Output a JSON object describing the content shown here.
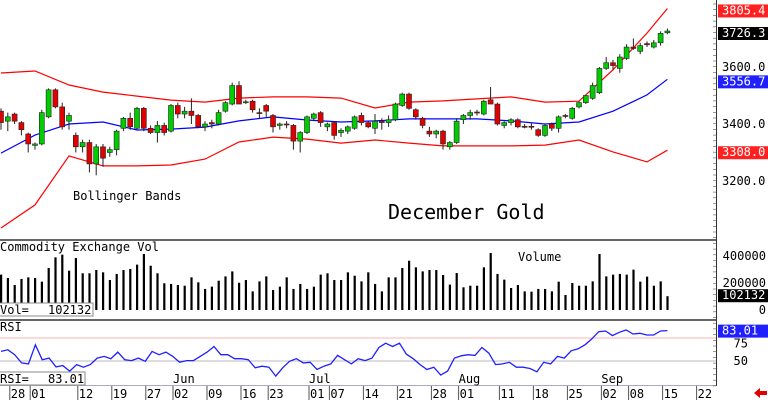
{
  "chart_data": [
    {
      "type": "candlestick",
      "title": "December Gold",
      "annotation": "Bollinger Bands",
      "ylim": [
        3000,
        3840
      ],
      "y_ticks": [
        "3600.0",
        "3400.0",
        "3200.0"
      ],
      "y_tick_values": [
        3600,
        3400,
        3200
      ],
      "grid": false,
      "colors": {
        "up": "#00cc00",
        "down": "#e00000",
        "bands": "#ff0000",
        "middle": "#0000ff"
      },
      "ohlc": [
        [
          3445,
          3455,
          3380,
          3405
        ],
        [
          3410,
          3440,
          3375,
          3425
        ],
        [
          3435,
          3440,
          3400,
          3410
        ],
        [
          3405,
          3410,
          3360,
          3380
        ],
        [
          3365,
          3370,
          3300,
          3330
        ],
        [
          3325,
          3335,
          3310,
          3330
        ],
        [
          3330,
          3450,
          3325,
          3440
        ],
        [
          3425,
          3525,
          3420,
          3520
        ],
        [
          3520,
          3525,
          3455,
          3460
        ],
        [
          3460,
          3475,
          3380,
          3390
        ],
        [
          3410,
          3440,
          3380,
          3430
        ],
        [
          3360,
          3370,
          3300,
          3320
        ],
        [
          3320,
          3345,
          3300,
          3335
        ],
        [
          3335,
          3345,
          3230,
          3260
        ],
        [
          3260,
          3330,
          3220,
          3320
        ],
        [
          3320,
          3330,
          3250,
          3280
        ],
        [
          3300,
          3320,
          3285,
          3310
        ],
        [
          3310,
          3380,
          3290,
          3375
        ],
        [
          3385,
          3425,
          3375,
          3420
        ],
        [
          3420,
          3440,
          3380,
          3390
        ],
        [
          3385,
          3460,
          3380,
          3455
        ],
        [
          3455,
          3460,
          3375,
          3385
        ],
        [
          3385,
          3395,
          3365,
          3370
        ],
        [
          3370,
          3410,
          3335,
          3395
        ],
        [
          3395,
          3405,
          3360,
          3370
        ],
        [
          3375,
          3470,
          3370,
          3465
        ],
        [
          3465,
          3475,
          3420,
          3435
        ],
        [
          3435,
          3460,
          3420,
          3445
        ],
        [
          3445,
          3490,
          3400,
          3430
        ],
        [
          3430,
          3435,
          3385,
          3390
        ],
        [
          3390,
          3410,
          3375,
          3400
        ],
        [
          3405,
          3415,
          3385,
          3400
        ],
        [
          3400,
          3450,
          3395,
          3440
        ],
        [
          3445,
          3480,
          3440,
          3475
        ],
        [
          3470,
          3545,
          3465,
          3535
        ],
        [
          3535,
          3550,
          3470,
          3470
        ],
        [
          3475,
          3485,
          3470,
          3478
        ],
        [
          3480,
          3485,
          3440,
          3450
        ],
        [
          3440,
          3455,
          3420,
          3438
        ],
        [
          3465,
          3470,
          3425,
          3445
        ],
        [
          3430,
          3435,
          3370,
          3390
        ],
        [
          3395,
          3405,
          3380,
          3400
        ],
        [
          3400,
          3410,
          3385,
          3398
        ],
        [
          3395,
          3400,
          3310,
          3340
        ],
        [
          3340,
          3375,
          3300,
          3370
        ],
        [
          3370,
          3430,
          3365,
          3425
        ],
        [
          3420,
          3440,
          3410,
          3435
        ],
        [
          3440,
          3445,
          3390,
          3405
        ],
        [
          3390,
          3405,
          3375,
          3400
        ],
        [
          3405,
          3410,
          3345,
          3360
        ],
        [
          3370,
          3385,
          3355,
          3378
        ],
        [
          3375,
          3395,
          3365,
          3390
        ],
        [
          3385,
          3430,
          3380,
          3425
        ],
        [
          3430,
          3440,
          3395,
          3405
        ],
        [
          3405,
          3410,
          3385,
          3390
        ],
        [
          3385,
          3435,
          3365,
          3410
        ],
        [
          3410,
          3420,
          3380,
          3405
        ],
        [
          3405,
          3430,
          3390,
          3415
        ],
        [
          3415,
          3475,
          3410,
          3470
        ],
        [
          3465,
          3510,
          3460,
          3505
        ],
        [
          3505,
          3510,
          3450,
          3455
        ],
        [
          3450,
          3455,
          3415,
          3425
        ],
        [
          3420,
          3425,
          3385,
          3395
        ],
        [
          3375,
          3390,
          3355,
          3365
        ],
        [
          3365,
          3380,
          3350,
          3375
        ],
        [
          3375,
          3380,
          3310,
          3330
        ],
        [
          3320,
          3340,
          3310,
          3335
        ],
        [
          3335,
          3420,
          3330,
          3410
        ],
        [
          3415,
          3435,
          3400,
          3430
        ],
        [
          3430,
          3450,
          3415,
          3440
        ],
        [
          3442,
          3450,
          3430,
          3440
        ],
        [
          3435,
          3485,
          3430,
          3480
        ],
        [
          3485,
          3530,
          3470,
          3470
        ],
        [
          3470,
          3475,
          3395,
          3400
        ],
        [
          3395,
          3410,
          3385,
          3405
        ],
        [
          3405,
          3420,
          3395,
          3415
        ],
        [
          3415,
          3420,
          3385,
          3390
        ],
        [
          3392,
          3400,
          3385,
          3390
        ],
        [
          3392,
          3405,
          3380,
          3390
        ],
        [
          3380,
          3385,
          3355,
          3360
        ],
        [
          3360,
          3400,
          3355,
          3395
        ],
        [
          3400,
          3405,
          3375,
          3385
        ],
        [
          3385,
          3430,
          3370,
          3425
        ],
        [
          3430,
          3435,
          3420,
          3428
        ],
        [
          3420,
          3460,
          3415,
          3455
        ],
        [
          3460,
          3480,
          3455,
          3475
        ],
        [
          3475,
          3500,
          3470,
          3500
        ],
        [
          3490,
          3545,
          3485,
          3535
        ],
        [
          3510,
          3600,
          3505,
          3595
        ],
        [
          3595,
          3635,
          3590,
          3615
        ],
        [
          3615,
          3625,
          3590,
          3605
        ],
        [
          3595,
          3645,
          3580,
          3635
        ],
        [
          3630,
          3680,
          3625,
          3670
        ],
        [
          3670,
          3700,
          3660,
          3665
        ],
        [
          3655,
          3685,
          3645,
          3675
        ],
        [
          3682,
          3690,
          3670,
          3678
        ],
        [
          3670,
          3695,
          3665,
          3685
        ],
        [
          3685,
          3725,
          3675,
          3718
        ],
        [
          3720,
          3735,
          3715,
          3726.3
        ]
      ],
      "bollinger_every5": {
        "upper": [
          3579,
          3586,
          3537,
          3512,
          3498,
          3484,
          3477,
          3491,
          3495,
          3495,
          3491,
          3456,
          3477,
          3481,
          3488,
          3495,
          3477,
          3480,
          3590,
          3719,
          3805.4
        ],
        "middle": [
          3298,
          3361,
          3400,
          3407,
          3379,
          3382,
          3389,
          3411,
          3425,
          3414,
          3407,
          3411,
          3418,
          3418,
          3418,
          3411,
          3400,
          3407,
          3445,
          3502,
          3556.7
        ],
        "lower": [
          3035,
          3116,
          3288,
          3253,
          3253,
          3256,
          3277,
          3337,
          3354,
          3347,
          3333,
          3344,
          3333,
          3323,
          3323,
          3323,
          3326,
          3344,
          3302,
          3267,
          3308.0
        ]
      },
      "last_labels": [
        {
          "text": "3805.4",
          "value": 3805.4,
          "bg": "#ff2020",
          "fg": "#ffffff"
        },
        {
          "text": "3726.3",
          "value": 3726.3,
          "bg": "#000000",
          "fg": "#ffffff"
        },
        {
          "text": "3556.7",
          "value": 3556.7,
          "bg": "#2020ff",
          "fg": "#ffffff"
        },
        {
          "text": "3308.0",
          "value": 3308.0,
          "bg": "#ff2020",
          "fg": "#ffffff"
        }
      ]
    },
    {
      "type": "bar",
      "title": "Commodity Exchange Vol",
      "annotation": "Volume",
      "readout_label": "Vol=",
      "readout_value": "102132",
      "ylim": [
        0,
        450000
      ],
      "y_ticks": [
        "400000",
        "200000",
        "0"
      ],
      "y_tick_values": [
        400000,
        200000,
        0
      ],
      "last_label": {
        "text": "102132",
        "value": 102132,
        "bg": "#000000",
        "fg": "#ffffff"
      },
      "values": [
        262000,
        237000,
        185000,
        230000,
        242000,
        237000,
        210000,
        311000,
        390000,
        410000,
        291000,
        385000,
        272000,
        272000,
        296000,
        279000,
        222000,
        267000,
        296000,
        304000,
        336000,
        415000,
        328000,
        272000,
        198000,
        193000,
        185000,
        180000,
        242000,
        205000,
        156000,
        173000,
        217000,
        249000,
        286000,
        202000,
        222000,
        138000,
        212000,
        249000,
        148000,
        173000,
        242000,
        156000,
        193000,
        156000,
        173000,
        262000,
        272000,
        222000,
        222000,
        279000,
        254000,
        212000,
        279000,
        193000,
        138000,
        242000,
        242000,
        311000,
        365000,
        316000,
        286000,
        296000,
        296000,
        259000,
        188000,
        274000,
        168000,
        180000,
        180000,
        316000,
        422000,
        267000,
        225000,
        163000,
        185000,
        138000,
        136000,
        156000,
        156000,
        138000,
        210000,
        111000,
        200000,
        180000,
        180000,
        212000,
        415000,
        249000,
        262000,
        267000,
        262000,
        299000,
        210000,
        247000,
        180000,
        212000,
        102132
      ]
    },
    {
      "type": "line",
      "title": "RSI",
      "readout_label": "RSI=",
      "readout_value": "83.01",
      "ylim": [
        25,
        95
      ],
      "y_ticks": [
        "75",
        "50"
      ],
      "y_tick_values": [
        75,
        50
      ],
      "reference_lines": [
        75,
        50
      ],
      "last_label": {
        "text": "83.01",
        "value": 83.01,
        "bg": "#2020ff",
        "fg": "#ffffff"
      },
      "values": [
        60.4,
        62.2,
        56.8,
        47.9,
        46.8,
        67.6,
        51.4,
        53.2,
        43.6,
        45,
        39,
        46.1,
        43.3,
        46.1,
        53.2,
        55,
        52.5,
        59.7,
        51.4,
        50.4,
        53.2,
        49.7,
        60.4,
        56.8,
        59.7,
        55,
        48.6,
        50.4,
        50.4,
        55,
        59.7,
        65.8,
        56.8,
        56.8,
        52.5,
        52.5,
        51.4,
        42.6,
        44.3,
        43.3,
        33.6,
        42.6,
        49.7,
        52.5,
        47.9,
        48.6,
        40.8,
        44.3,
        46.8,
        56.1,
        51.4,
        46.8,
        52.5,
        50.4,
        53.2,
        64.7,
        69.3,
        65.8,
        69.3,
        57.5,
        52.5,
        46.1,
        40.8,
        43.3,
        34.7,
        39,
        53.2,
        55.7,
        56.8,
        56.1,
        64.7,
        58.6,
        46.1,
        46.8,
        48.6,
        43.3,
        43.3,
        41.9,
        38.3,
        48.6,
        46.8,
        55,
        53.2,
        61.1,
        63.3,
        67.6,
        74,
        81.9,
        82.6,
        77.6,
        81.2,
        83.7,
        79.4,
        80.1,
        78.3,
        78.3,
        82.6,
        83.01
      ]
    }
  ],
  "x_axis": {
    "day_ticks": [
      {
        "label": "28",
        "bar": 1
      },
      {
        "label": "01",
        "bar": 4
      },
      {
        "label": "12",
        "bar": 11
      },
      {
        "label": "19",
        "bar": 16
      },
      {
        "label": "27",
        "bar": 21
      },
      {
        "label": "02",
        "bar": 25
      },
      {
        "label": "09",
        "bar": 30
      },
      {
        "label": "16",
        "bar": 35
      },
      {
        "label": "23",
        "bar": 39
      },
      {
        "label": "01",
        "bar": 45
      },
      {
        "label": "07",
        "bar": 48
      },
      {
        "label": "14",
        "bar": 53
      },
      {
        "label": "21",
        "bar": 58
      },
      {
        "label": "28",
        "bar": 63
      },
      {
        "label": "01",
        "bar": 67
      },
      {
        "label": "11",
        "bar": 73
      },
      {
        "label": "18",
        "bar": 78
      },
      {
        "label": "25",
        "bar": 83
      },
      {
        "label": "02",
        "bar": 88
      },
      {
        "label": "08",
        "bar": 92
      },
      {
        "label": "15",
        "bar": 97
      },
      {
        "label": "22",
        "bar": 102
      }
    ],
    "months": [
      {
        "label": "Jun",
        "bar": 25
      },
      {
        "label": "Jul",
        "bar": 45
      },
      {
        "label": "Aug",
        "bar": 67
      },
      {
        "label": "Sep",
        "bar": 88
      }
    ]
  },
  "scroll_arrow_icon": "left-arrow-icon"
}
